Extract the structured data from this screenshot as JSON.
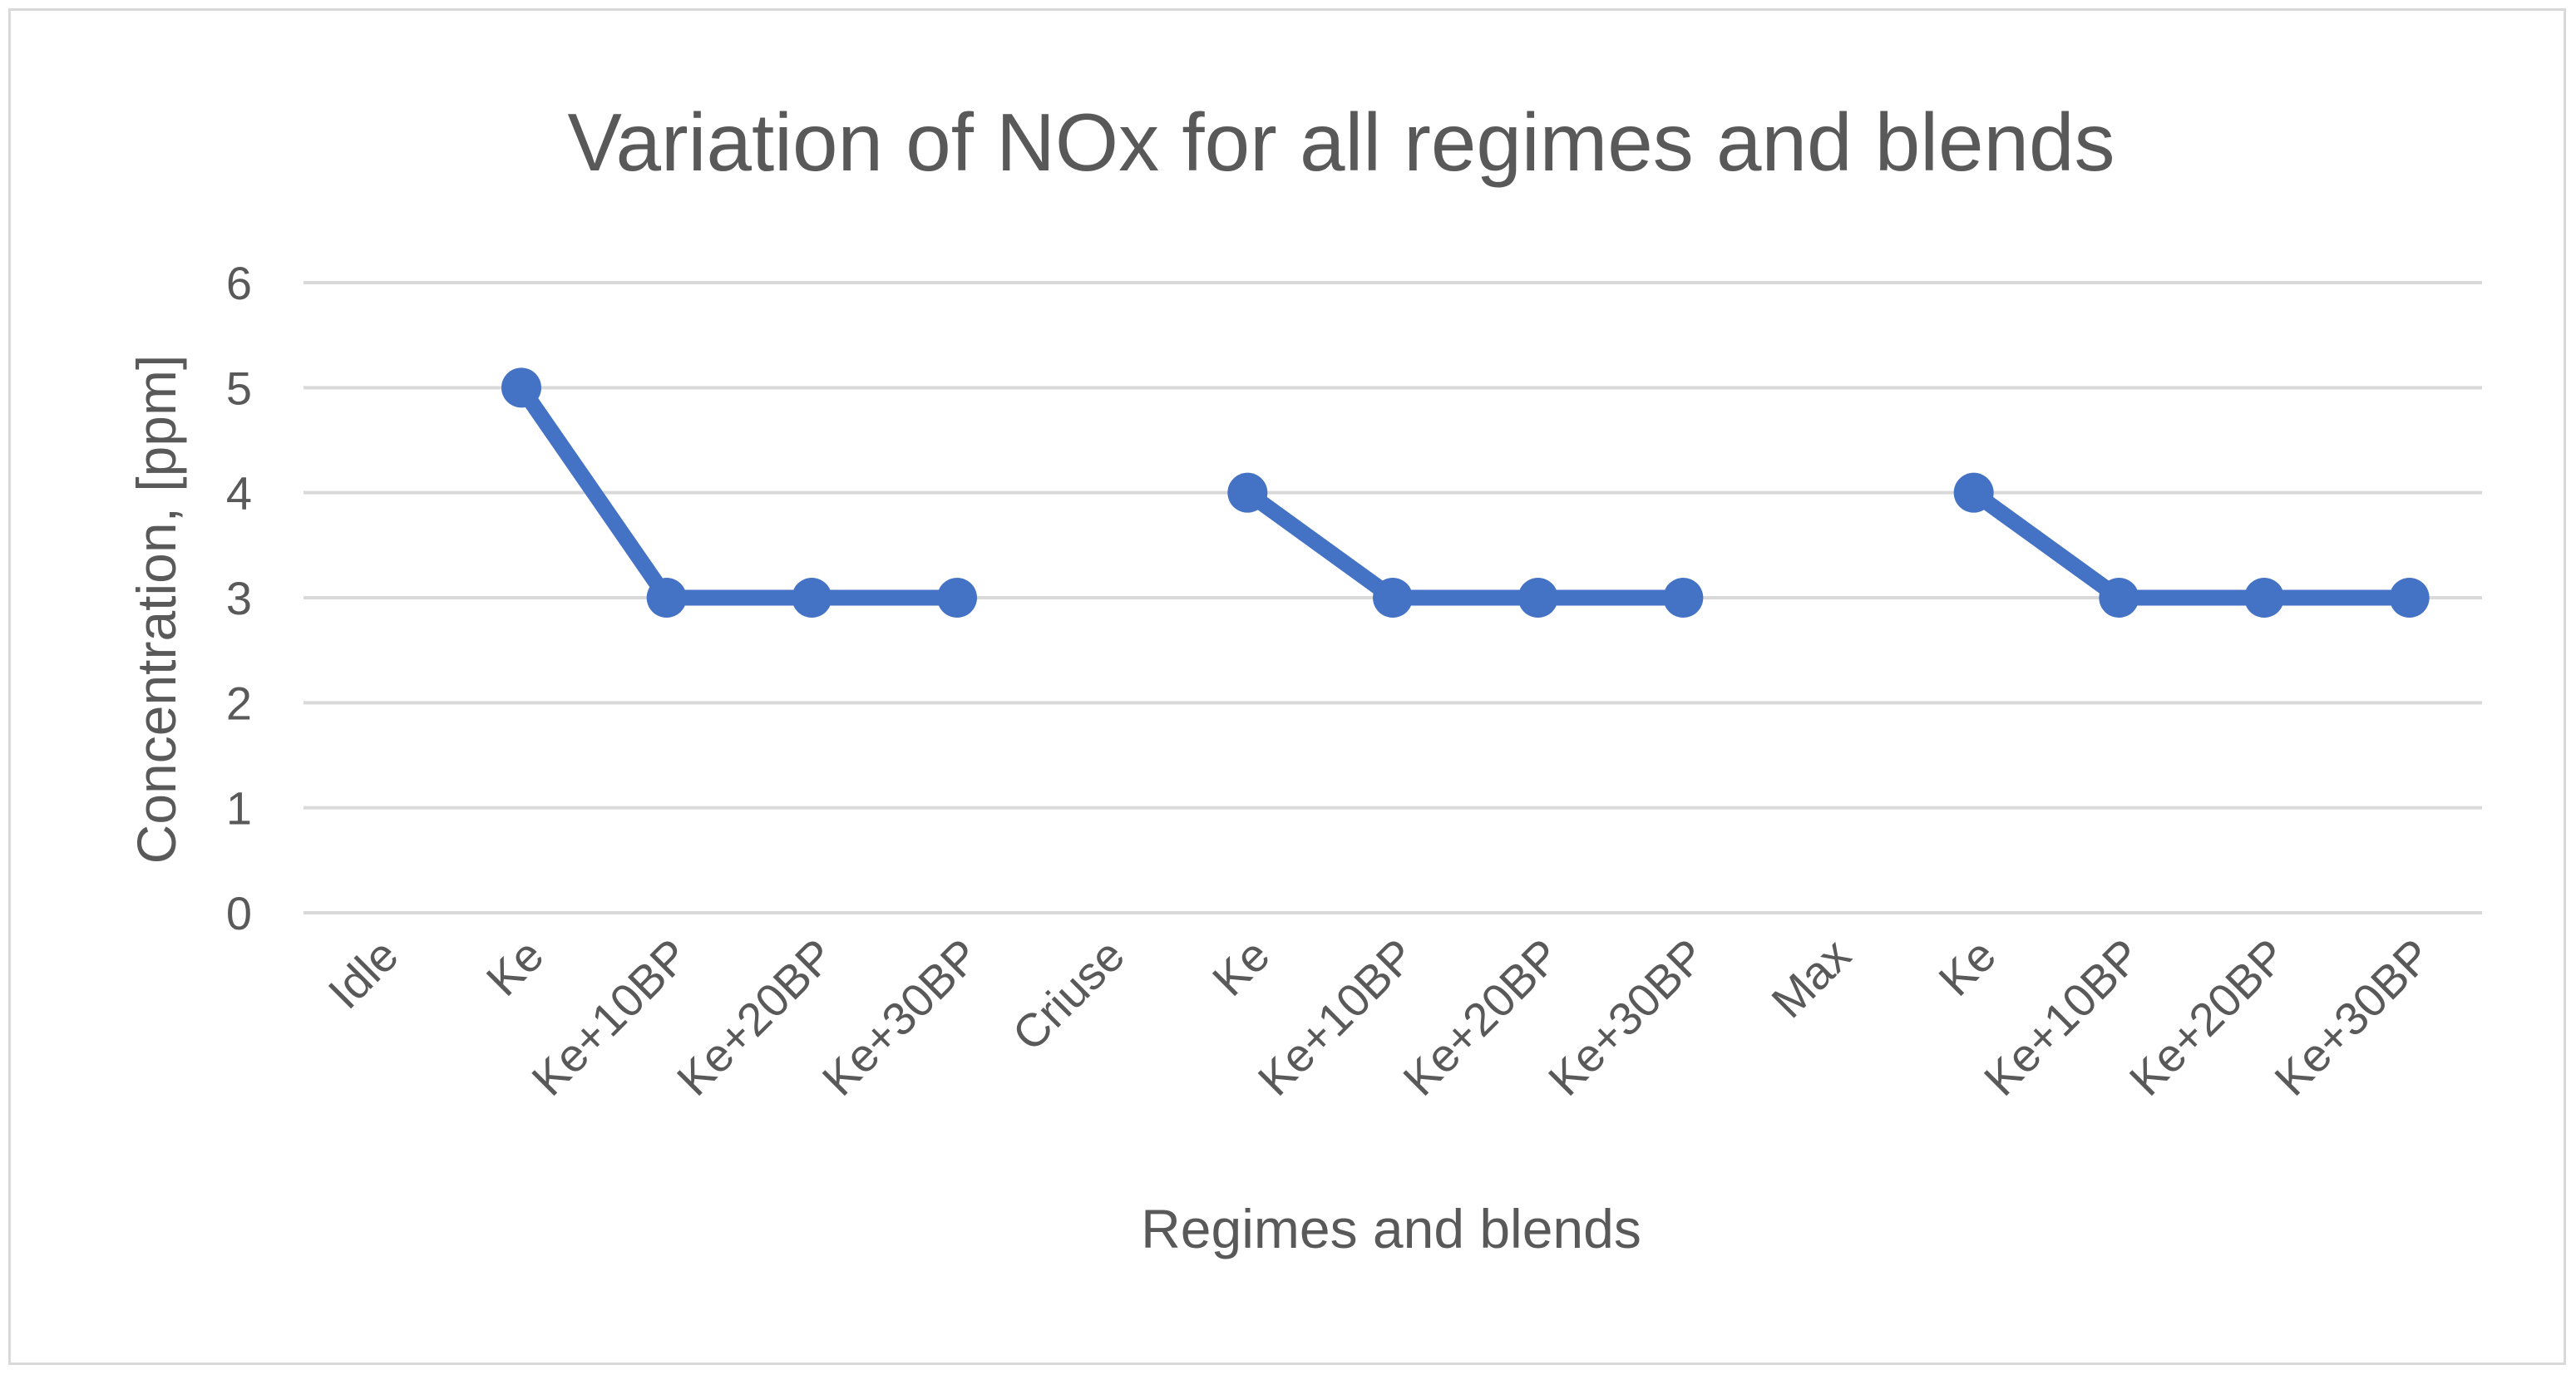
{
  "chart_data": {
    "type": "line",
    "title": "Variation of NOx for all regimes and blends",
    "xlabel": "Regimes and blends",
    "ylabel": "Concentration, [ppm]",
    "ylim": [
      0,
      6
    ],
    "yticks": [
      "0",
      "1",
      "2",
      "3",
      "4",
      "5",
      "6"
    ],
    "grid": true,
    "categories": [
      "Idle",
      "Ke",
      "Ke+10BP",
      "Ke+20BP",
      "Ke+30BP",
      "Criuse",
      "Ke",
      "Ke+10BP",
      "Ke+20BP",
      "Ke+30BP",
      "Max",
      "Ke",
      "Ke+10BP",
      "Ke+20BP",
      "Ke+30BP"
    ],
    "series": [
      {
        "color": "#4472c4",
        "values": [
          null,
          5,
          3,
          3,
          3,
          null,
          4,
          3,
          3,
          3,
          null,
          4,
          3,
          3,
          3
        ]
      }
    ]
  }
}
